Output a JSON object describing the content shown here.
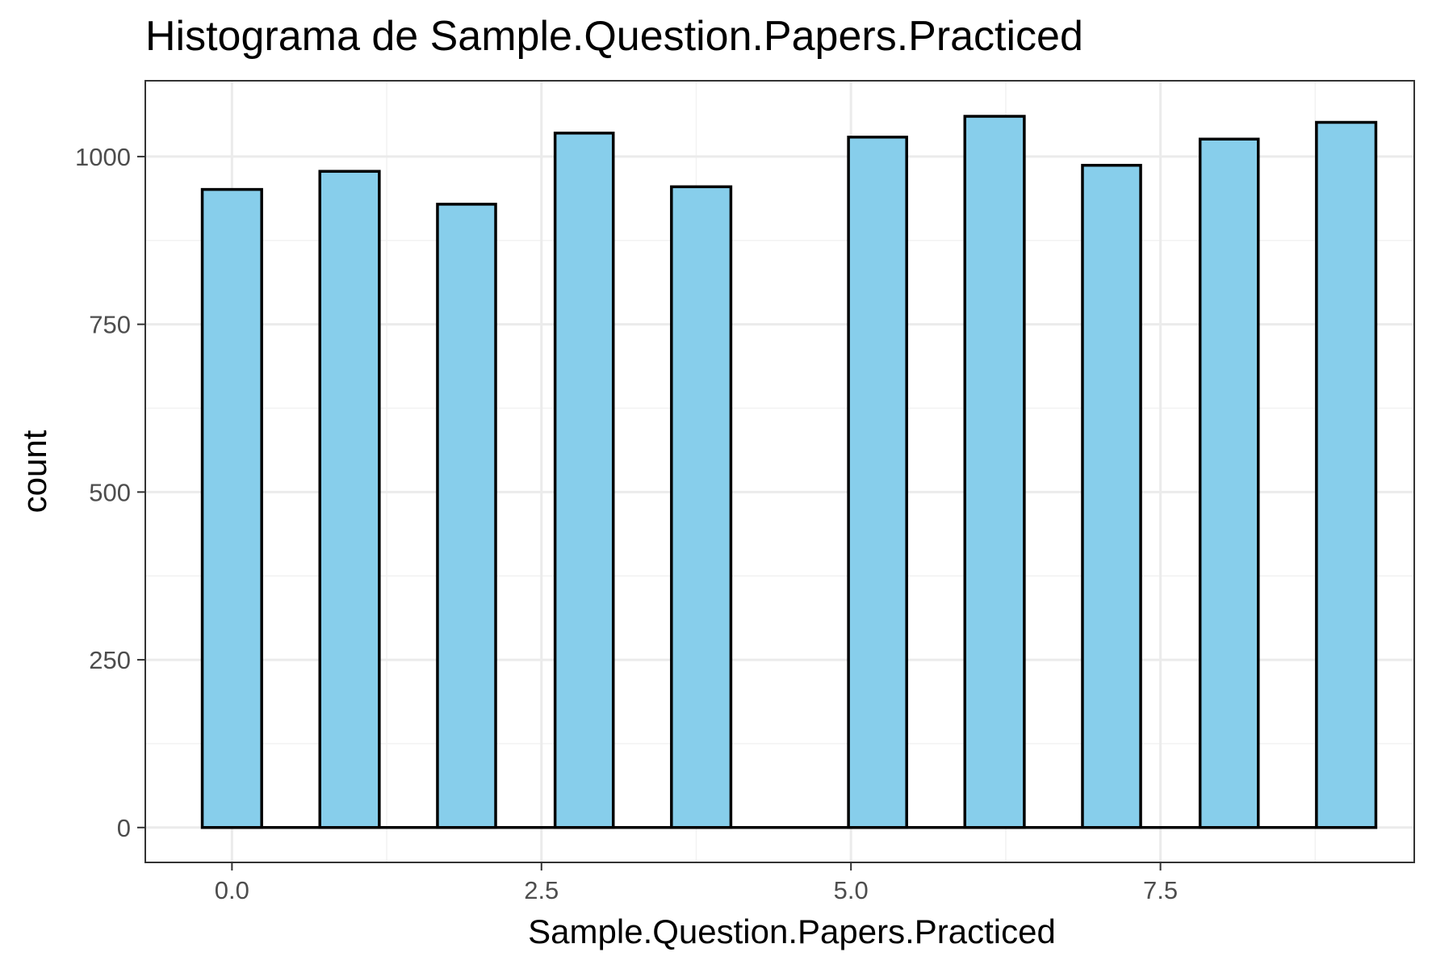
{
  "chart_data": {
    "type": "bar",
    "title": "Histograma de Sample.Question.Papers.Practiced",
    "xlabel": "Sample.Question.Papers.Practiced",
    "ylabel": "count",
    "xlim": [
      -0.7,
      9.55
    ],
    "ylim": [
      -52,
      1113
    ],
    "x_ticks": [
      {
        "value": 0,
        "label": "0.0"
      },
      {
        "value": 2.5,
        "label": "2.5"
      },
      {
        "value": 5,
        "label": "5.0"
      },
      {
        "value": 7.5,
        "label": "7.5"
      }
    ],
    "y_ticks": [
      {
        "value": 0,
        "label": "0"
      },
      {
        "value": 250,
        "label": "250"
      },
      {
        "value": 500,
        "label": "500"
      },
      {
        "value": 750,
        "label": "750"
      },
      {
        "value": 1000,
        "label": "1000"
      }
    ],
    "bins": [
      {
        "x0": -0.24,
        "x1": 0.24,
        "count": 951
      },
      {
        "x0": 0.71,
        "x1": 1.19,
        "count": 978
      },
      {
        "x0": 1.66,
        "x1": 2.13,
        "count": 929
      },
      {
        "x0": 2.61,
        "x1": 3.08,
        "count": 1035
      },
      {
        "x0": 3.55,
        "x1": 4.03,
        "count": 955
      },
      {
        "x0": 4.5,
        "x1": 4.98,
        "count": 0
      },
      {
        "x0": 4.98,
        "x1": 5.45,
        "count": 1029
      },
      {
        "x0": 5.92,
        "x1": 6.4,
        "count": 1060
      },
      {
        "x0": 6.87,
        "x1": 7.34,
        "count": 987
      },
      {
        "x0": 7.82,
        "x1": 8.29,
        "count": 1026
      },
      {
        "x0": 8.76,
        "x1": 9.24,
        "count": 1051
      }
    ],
    "grid": true,
    "bar_fill": "#87ceeb",
    "bar_stroke": "#000000"
  }
}
